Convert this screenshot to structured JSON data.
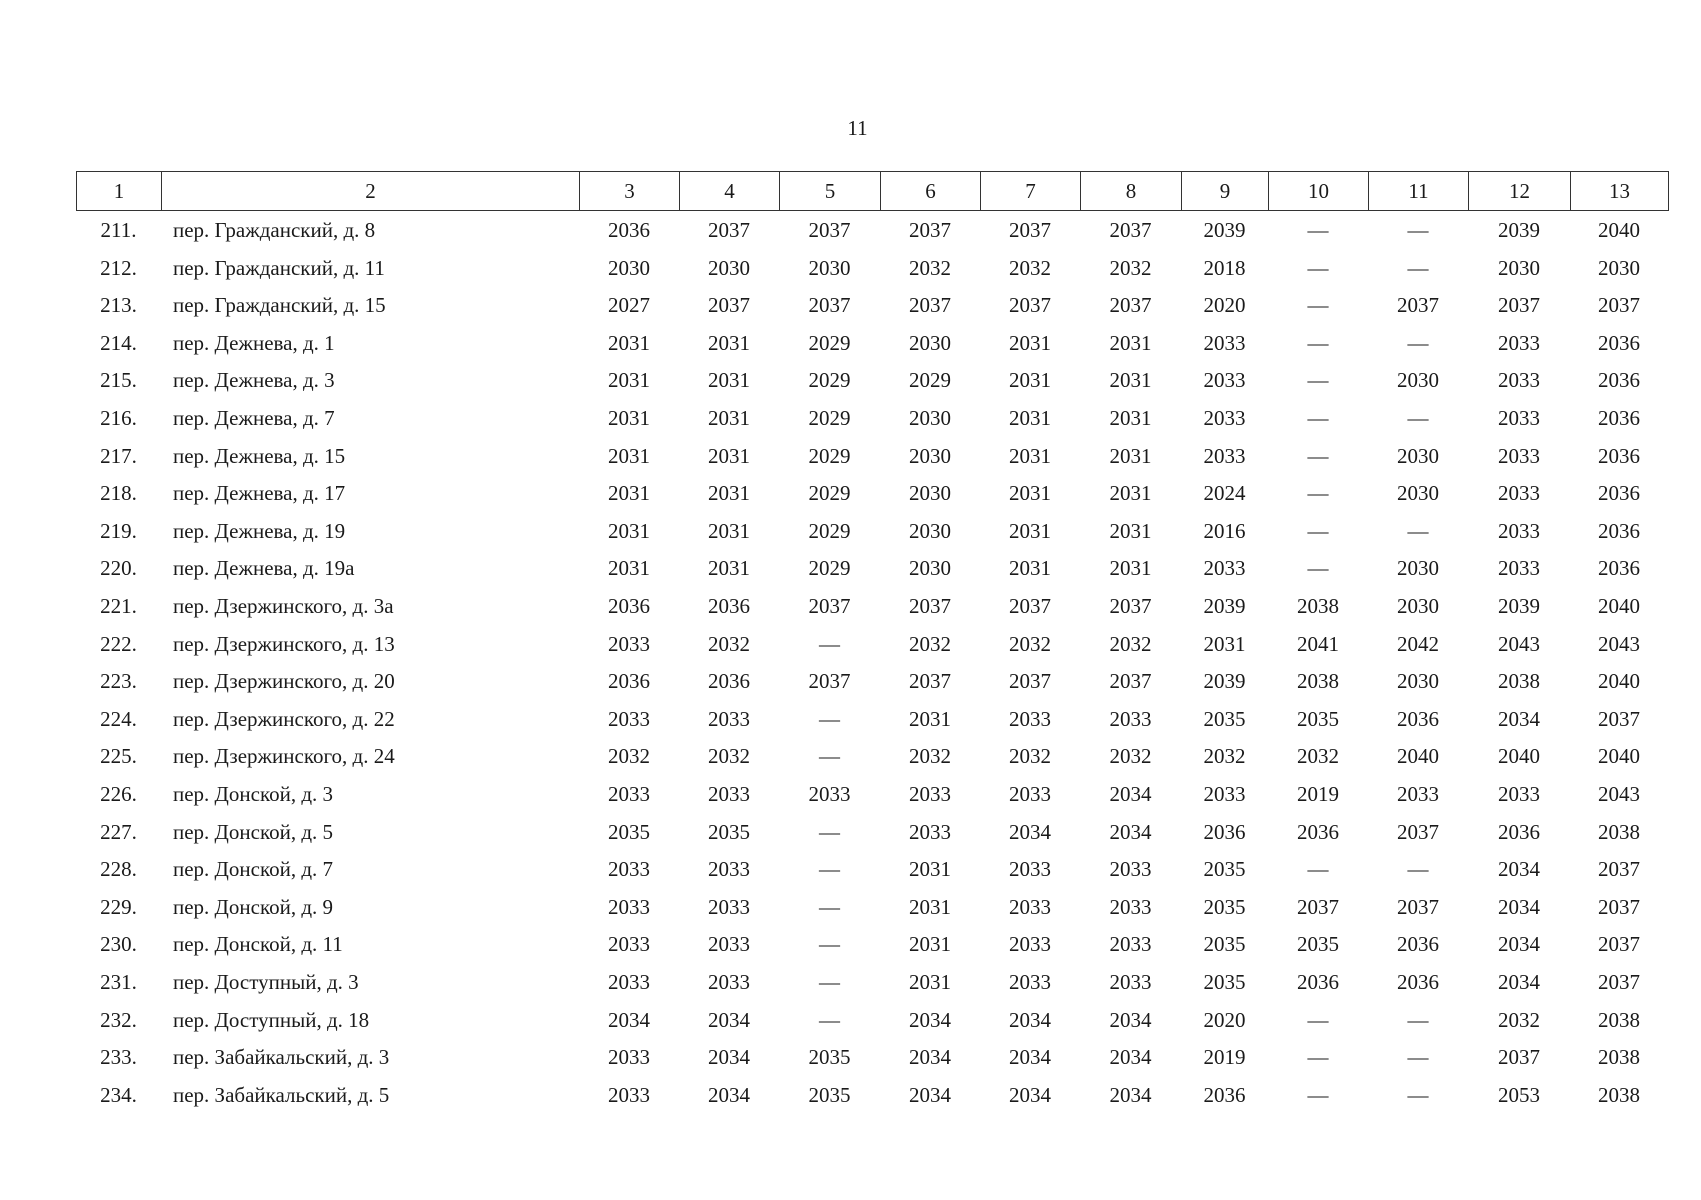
{
  "page_number": "11",
  "table": {
    "header": [
      "1",
      "2",
      "3",
      "4",
      "5",
      "6",
      "7",
      "8",
      "9",
      "10",
      "11",
      "12",
      "13"
    ],
    "rows": [
      [
        "211.",
        "пер. Гражданский, д. 8",
        2036,
        2037,
        2037,
        2037,
        2037,
        2037,
        2039,
        "—",
        "—",
        2039,
        2040
      ],
      [
        "212.",
        "пер. Гражданский, д. 11",
        2030,
        2030,
        2030,
        2032,
        2032,
        2032,
        2018,
        "—",
        "—",
        2030,
        2030
      ],
      [
        "213.",
        "пер. Гражданский, д. 15",
        2027,
        2037,
        2037,
        2037,
        2037,
        2037,
        2020,
        "—",
        2037,
        2037,
        2037
      ],
      [
        "214.",
        "пер. Дежнева, д. 1",
        2031,
        2031,
        2029,
        2030,
        2031,
        2031,
        2033,
        "—",
        "—",
        2033,
        2036
      ],
      [
        "215.",
        "пер. Дежнева, д. 3",
        2031,
        2031,
        2029,
        2029,
        2031,
        2031,
        2033,
        "—",
        2030,
        2033,
        2036
      ],
      [
        "216.",
        "пер. Дежнева, д. 7",
        2031,
        2031,
        2029,
        2030,
        2031,
        2031,
        2033,
        "—",
        "—",
        2033,
        2036
      ],
      [
        "217.",
        "пер. Дежнева, д. 15",
        2031,
        2031,
        2029,
        2030,
        2031,
        2031,
        2033,
        "—",
        2030,
        2033,
        2036
      ],
      [
        "218.",
        "пер. Дежнева, д. 17",
        2031,
        2031,
        2029,
        2030,
        2031,
        2031,
        2024,
        "—",
        2030,
        2033,
        2036
      ],
      [
        "219.",
        "пер. Дежнева, д. 19",
        2031,
        2031,
        2029,
        2030,
        2031,
        2031,
        2016,
        "—",
        "—",
        2033,
        2036
      ],
      [
        "220.",
        "пер. Дежнева, д. 19а",
        2031,
        2031,
        2029,
        2030,
        2031,
        2031,
        2033,
        "—",
        2030,
        2033,
        2036
      ],
      [
        "221.",
        "пер. Дзержинского, д. 3а",
        2036,
        2036,
        2037,
        2037,
        2037,
        2037,
        2039,
        2038,
        2030,
        2039,
        2040
      ],
      [
        "222.",
        "пер. Дзержинского, д. 13",
        2033,
        2032,
        "—",
        2032,
        2032,
        2032,
        2031,
        2041,
        2042,
        2043,
        2043
      ],
      [
        "223.",
        "пер. Дзержинского, д. 20",
        2036,
        2036,
        2037,
        2037,
        2037,
        2037,
        2039,
        2038,
        2030,
        2038,
        2040
      ],
      [
        "224.",
        "пер. Дзержинского, д. 22",
        2033,
        2033,
        "—",
        2031,
        2033,
        2033,
        2035,
        2035,
        2036,
        2034,
        2037
      ],
      [
        "225.",
        "пер. Дзержинского, д. 24",
        2032,
        2032,
        "—",
        2032,
        2032,
        2032,
        2032,
        2032,
        2040,
        2040,
        2040
      ],
      [
        "226.",
        "пер. Донской, д. 3",
        2033,
        2033,
        2033,
        2033,
        2033,
        2034,
        2033,
        2019,
        2033,
        2033,
        2043
      ],
      [
        "227.",
        "пер. Донской, д. 5",
        2035,
        2035,
        "—",
        2033,
        2034,
        2034,
        2036,
        2036,
        2037,
        2036,
        2038
      ],
      [
        "228.",
        "пер. Донской, д. 7",
        2033,
        2033,
        "—",
        2031,
        2033,
        2033,
        2035,
        "—",
        "—",
        2034,
        2037
      ],
      [
        "229.",
        "пер. Донской, д. 9",
        2033,
        2033,
        "—",
        2031,
        2033,
        2033,
        2035,
        2037,
        2037,
        2034,
        2037
      ],
      [
        "230.",
        "пер. Донской, д. 11",
        2033,
        2033,
        "—",
        2031,
        2033,
        2033,
        2035,
        2035,
        2036,
        2034,
        2037
      ],
      [
        "231.",
        "пер. Доступный, д. 3",
        2033,
        2033,
        "—",
        2031,
        2033,
        2033,
        2035,
        2036,
        2036,
        2034,
        2037
      ],
      [
        "232.",
        "пер. Доступный, д. 18",
        2034,
        2034,
        "—",
        2034,
        2034,
        2034,
        2020,
        "—",
        "—",
        2032,
        2038
      ],
      [
        "233.",
        "пер. Забайкальский, д. 3",
        2033,
        2034,
        2035,
        2034,
        2034,
        2034,
        2019,
        "—",
        "—",
        2037,
        2038
      ],
      [
        "234.",
        "пер. Забайкальский, д. 5",
        2033,
        2034,
        2035,
        2034,
        2034,
        2034,
        2036,
        "—",
        "—",
        2053,
        2038
      ]
    ]
  }
}
